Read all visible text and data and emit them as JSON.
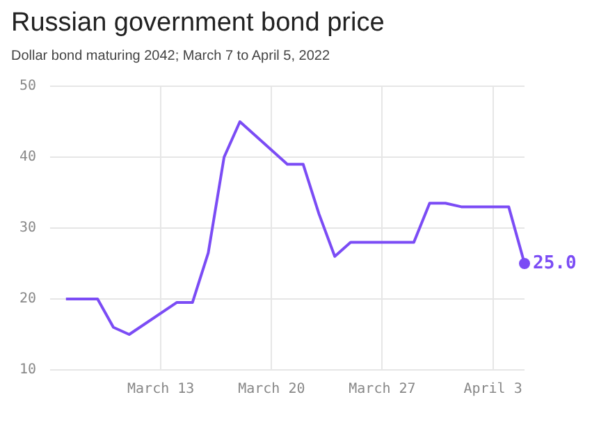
{
  "chart_data": {
    "type": "line",
    "title": "Russian government bond price",
    "subtitle": "Dollar bond maturing 2042; March 7 to April 5, 2022",
    "x": [
      "2022-03-07",
      "2022-03-09",
      "2022-03-10",
      "2022-03-11",
      "2022-03-14",
      "2022-03-15",
      "2022-03-16",
      "2022-03-17",
      "2022-03-18",
      "2022-03-21",
      "2022-03-22",
      "2022-03-23",
      "2022-03-24",
      "2022-03-25",
      "2022-03-28",
      "2022-03-29",
      "2022-03-30",
      "2022-03-31",
      "2022-04-01",
      "2022-04-04",
      "2022-04-05"
    ],
    "series": [
      {
        "color": "#7b4cf5",
        "values": [
          20,
          20,
          16,
          15,
          19.5,
          19.5,
          26.5,
          40,
          45,
          39,
          39,
          32,
          26,
          28,
          28,
          28,
          33.5,
          33.5,
          33,
          33,
          25.0
        ],
        "value_labels": [
          null,
          null,
          null,
          null,
          null,
          null,
          null,
          null,
          null,
          null,
          null,
          null,
          null,
          null,
          null,
          null,
          null,
          null,
          null,
          null,
          "25.0"
        ]
      }
    ],
    "xlim": [
      "2022-03-06",
      "2022-04-05"
    ],
    "xticks": [
      {
        "value": "2022-03-13",
        "label": "March 13"
      },
      {
        "value": "2022-03-20",
        "label": "March 20"
      },
      {
        "value": "2022-03-27",
        "label": "March 27"
      },
      {
        "value": "2022-04-03",
        "label": "April 3"
      }
    ],
    "ylim": [
      10,
      50
    ],
    "yticks": [
      10,
      20,
      30,
      40,
      50
    ],
    "grid": true,
    "legend": false,
    "marker": "none",
    "line_style": "solid"
  }
}
